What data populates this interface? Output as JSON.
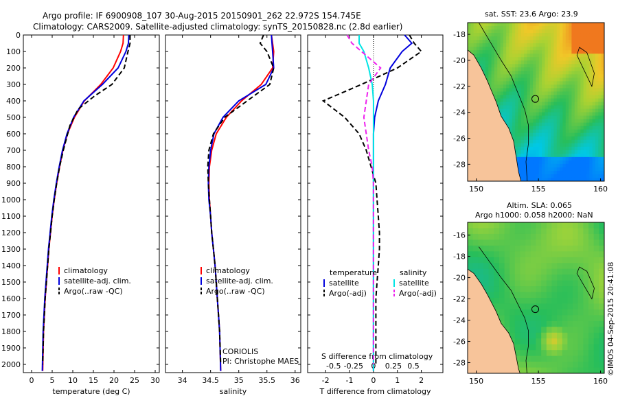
{
  "header": {
    "line1": "Argo profile: IF 6900908_107 30-Aug-2015 20150901_262 22.972S 154.745E",
    "line2": "Climatology: CARS2009. Satellite-adjusted climatology: synTS_20150828.nc (2.8d earlier)"
  },
  "credits": {
    "center": "CORIOLIS",
    "pi": "PI: Christophe MAES"
  },
  "footer_stamp": "©IMOS 04-Sep-2015 20:41:08",
  "chart_data": [
    {
      "type": "line",
      "id": "temperature",
      "xlabel": "temperature (deg C)",
      "xlim": [
        -2,
        31
      ],
      "ylim": [
        2050,
        0
      ],
      "xticks": [
        0,
        5,
        10,
        15,
        20,
        25,
        30
      ],
      "yticks": [
        0,
        100,
        200,
        300,
        400,
        500,
        600,
        700,
        800,
        900,
        1000,
        1100,
        1200,
        1300,
        1400,
        1500,
        1600,
        1700,
        1800,
        1900,
        2000
      ],
      "legend": [
        "climatology",
        "satellite-adj. clim.",
        "Argo(..raw -QC)"
      ],
      "series": [
        {
          "name": "climatology",
          "color": "#ff0000",
          "dash": false,
          "x": [
            22.3,
            22.2,
            21.6,
            19.8,
            16.8,
            12.8,
            10.4,
            8.7,
            7.6,
            6.8,
            6.1,
            5.5,
            5.0,
            4.6,
            4.2,
            3.9,
            3.6,
            3.3,
            3.1,
            2.9,
            2.7
          ],
          "y": [
            0,
            50,
            100,
            200,
            300,
            400,
            500,
            600,
            700,
            800,
            900,
            1000,
            1100,
            1200,
            1300,
            1400,
            1500,
            1600,
            1700,
            1800,
            2040
          ]
        },
        {
          "name": "satellite-adj. clim.",
          "color": "#0000dd",
          "dash": false,
          "x": [
            23.6,
            23.5,
            22.9,
            21.0,
            17.2,
            12.7,
            10.2,
            8.6,
            7.5,
            6.7,
            6.0,
            5.4,
            4.9,
            4.5,
            4.1,
            3.8,
            3.5,
            3.2,
            3.0,
            2.8,
            2.6
          ],
          "y": [
            0,
            50,
            100,
            200,
            300,
            400,
            500,
            600,
            700,
            800,
            900,
            1000,
            1100,
            1200,
            1300,
            1400,
            1500,
            1600,
            1700,
            1800,
            2040
          ]
        },
        {
          "name": "Argo(..raw -QC)",
          "color": "#000000",
          "dash": true,
          "x": [
            23.9,
            23.9,
            23.4,
            22.5,
            19.5,
            15.3,
            11.3,
            9.3,
            7.7,
            6.8,
            6.1,
            5.5,
            5.0,
            4.6,
            4.2,
            3.9,
            3.6,
            3.3,
            3.1,
            2.9,
            2.7
          ],
          "y": [
            0,
            50,
            100,
            200,
            300,
            370,
            450,
            550,
            700,
            800,
            900,
            1000,
            1100,
            1200,
            1300,
            1400,
            1500,
            1600,
            1700,
            1800,
            2000
          ]
        }
      ]
    },
    {
      "type": "line",
      "id": "salinity",
      "xlabel": "salinity",
      "xlim": [
        33.7,
        36.1
      ],
      "ylim": [
        2050,
        0
      ],
      "xticks": [
        34,
        34.5,
        35,
        35.5,
        36
      ],
      "legend": [
        "climatology",
        "satellite-adj. clim.",
        "Argo(..raw -QC)"
      ],
      "series": [
        {
          "name": "climatology",
          "color": "#ff0000",
          "dash": false,
          "x": [
            35.58,
            35.6,
            35.62,
            35.6,
            35.4,
            35.05,
            34.78,
            34.6,
            34.52,
            34.48,
            34.47,
            34.48,
            34.5,
            34.52,
            34.55,
            34.58,
            34.6,
            34.62,
            34.64,
            34.66,
            34.68
          ],
          "y": [
            0,
            50,
            100,
            200,
            300,
            400,
            500,
            600,
            700,
            800,
            900,
            1000,
            1100,
            1200,
            1300,
            1400,
            1500,
            1600,
            1700,
            1800,
            2040
          ]
        },
        {
          "name": "satellite-adj. clim.",
          "color": "#0000dd",
          "dash": false,
          "x": [
            35.58,
            35.59,
            35.6,
            35.62,
            35.48,
            35.0,
            34.72,
            34.56,
            34.5,
            34.47,
            34.46,
            34.47,
            34.5,
            34.52,
            34.55,
            34.58,
            34.6,
            34.62,
            34.64,
            34.66,
            34.68
          ],
          "y": [
            0,
            50,
            100,
            200,
            300,
            400,
            500,
            600,
            700,
            800,
            900,
            1000,
            1100,
            1200,
            1300,
            1400,
            1500,
            1600,
            1700,
            1800,
            2040
          ]
        },
        {
          "name": "Argo(..raw -QC)",
          "color": "#000000",
          "dash": true,
          "x": [
            35.44,
            35.38,
            35.5,
            35.62,
            35.55,
            35.15,
            34.75,
            34.55,
            34.47,
            34.45,
            34.46,
            34.48,
            34.5,
            34.52,
            34.55,
            34.58,
            34.6,
            34.62,
            34.64,
            34.66,
            34.68
          ],
          "y": [
            0,
            50,
            100,
            200,
            300,
            400,
            500,
            600,
            700,
            800,
            900,
            1000,
            1100,
            1200,
            1300,
            1400,
            1500,
            1600,
            1700,
            1800,
            2000
          ]
        }
      ]
    },
    {
      "type": "line",
      "id": "difference",
      "xlabel": "T difference from climatology",
      "x2label": "S difference from climatology",
      "xlim": [
        -2.75,
        2.9
      ],
      "ylim": [
        2050,
        0
      ],
      "xticks": [
        -2,
        -1,
        0,
        1,
        2
      ],
      "x2ticks": [
        -0.5,
        -0.25,
        0,
        0.25,
        0.5
      ],
      "legend_groups": [
        "temperature",
        "salinity"
      ],
      "legend": [
        "satellite",
        "Argo(-adj)",
        "satellite",
        "Argo(-adj)"
      ],
      "series": [
        {
          "name": "satellite",
          "group": "temperature",
          "color": "#0000dd",
          "dash": false,
          "x": [
            1.3,
            1.6,
            1.2,
            0.7,
            0.5,
            0.2,
            0.05,
            0,
            0,
            0,
            0,
            0,
            0,
            0,
            0,
            0,
            0,
            0,
            0,
            0,
            0
          ],
          "y": [
            0,
            50,
            100,
            200,
            300,
            400,
            500,
            600,
            700,
            800,
            900,
            1000,
            1100,
            1200,
            1300,
            1400,
            1500,
            1600,
            1700,
            1800,
            2040
          ]
        },
        {
          "name": "Argo(-adj)",
          "group": "temperature",
          "color": "#000000",
          "dash": true,
          "x": [
            1.5,
            1.7,
            2.0,
            1.0,
            -0.5,
            -2.1,
            -1.2,
            -0.6,
            -0.3,
            -0.1,
            0.1,
            0.15,
            0.2,
            0.25,
            0.25,
            0.2,
            0.15,
            0.1,
            0.1,
            0.1,
            0.1
          ],
          "y": [
            0,
            50,
            100,
            200,
            300,
            400,
            500,
            600,
            700,
            800,
            900,
            1000,
            1100,
            1200,
            1300,
            1400,
            1500,
            1600,
            1700,
            1800,
            2000
          ]
        },
        {
          "name": "satellite",
          "group": "salinity",
          "color": "#00e5e5",
          "dash": false,
          "x": [
            -0.6,
            -0.6,
            -0.4,
            -0.2,
            -0.05,
            0,
            0,
            0,
            0,
            0,
            0,
            0,
            0,
            0,
            0,
            0,
            0,
            0,
            0,
            0,
            0
          ],
          "y": [
            0,
            50,
            100,
            200,
            300,
            400,
            500,
            600,
            700,
            800,
            900,
            1000,
            1100,
            1200,
            1300,
            1400,
            1500,
            1600,
            1700,
            1800,
            2040
          ]
        },
        {
          "name": "Argo(-adj)",
          "group": "salinity",
          "color": "#ee22ee",
          "dash": true,
          "x": [
            -1.1,
            -0.9,
            -0.5,
            0.3,
            -0.2,
            -0.3,
            -0.4,
            -0.3,
            -0.2,
            -0.05,
            0,
            0,
            0,
            0,
            0,
            0,
            0,
            0,
            0,
            0,
            0
          ],
          "y": [
            0,
            50,
            100,
            200,
            300,
            400,
            500,
            600,
            700,
            800,
            900,
            1000,
            1100,
            1200,
            1300,
            1400,
            1500,
            1600,
            1700,
            1800,
            2000
          ]
        }
      ]
    },
    {
      "type": "heatmap",
      "id": "sst_map",
      "title": "sat. SST: 23.6  Argo: 23.9",
      "xticks": [
        150,
        155,
        160
      ],
      "yticks": [
        -18,
        -20,
        -22,
        -24,
        -26,
        -28
      ],
      "xlim": [
        149.3,
        160.3
      ],
      "ylim": [
        -29.3,
        -17.1
      ],
      "profile_location": [
        154.745,
        -22.972
      ]
    },
    {
      "type": "heatmap",
      "id": "sla_map",
      "title_line1": "Altim. SLA: 0.065",
      "title_line2": "Argo h1000: 0.058 h2000: NaN",
      "xticks": [
        150,
        155,
        160
      ],
      "yticks": [
        -16,
        -18,
        -20,
        -22,
        -24,
        -26,
        -28
      ],
      "xlim": [
        149.3,
        160.3
      ],
      "ylim": [
        -29.0,
        -14.8
      ],
      "profile_location": [
        154.745,
        -22.972
      ]
    }
  ]
}
